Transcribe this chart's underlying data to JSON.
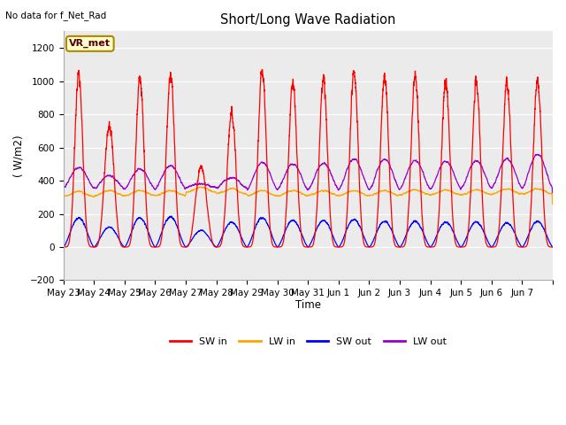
{
  "title": "Short/Long Wave Radiation",
  "subtitle": "No data for f_Net_Rad",
  "xlabel": "Time",
  "ylabel": "( W/m2)",
  "ylim": [
    -200,
    1300
  ],
  "yticks": [
    -200,
    0,
    200,
    400,
    600,
    800,
    1000,
    1200
  ],
  "station_label": "VR_met",
  "colors": {
    "SW_in": "#ff0000",
    "LW_in": "#ffa500",
    "SW_out": "#0000ff",
    "LW_out": "#9900cc"
  },
  "legend_labels": [
    "SW in",
    "LW in",
    "SW out",
    "LW out"
  ],
  "plot_bg_color": "#ebebeb",
  "n_days": 16,
  "x_tick_labels": [
    "May 23",
    "May 24",
    "May 25",
    "May 26",
    "May 27",
    "May 28",
    "May 29",
    "May 30",
    "May 31",
    "Jun 1",
    "Jun 2",
    "Jun 3",
    "Jun 4",
    "Jun 5",
    "Jun 6",
    "Jun 7"
  ],
  "SW_in_peaks": [
    1040,
    730,
    1020,
    1050,
    480,
    810,
    1070,
    990,
    1010,
    1060,
    1030,
    1020,
    1000,
    1000,
    1000,
    1020
  ],
  "SW_in_sharpness": [
    6,
    4,
    6,
    6,
    3,
    5,
    6,
    6,
    6,
    6,
    6,
    6,
    6,
    6,
    6,
    6
  ],
  "SW_out_peaks": [
    175,
    120,
    175,
    180,
    100,
    150,
    175,
    160,
    160,
    165,
    155,
    155,
    150,
    150,
    145,
    155
  ],
  "LW_in_base": [
    305,
    310,
    310,
    310,
    330,
    320,
    310,
    310,
    310,
    310,
    310,
    315,
    315,
    315,
    320,
    320
  ],
  "LW_out_peaks": [
    480,
    430,
    470,
    490,
    380,
    420,
    510,
    500,
    505,
    530,
    530,
    520,
    515,
    520,
    530,
    560
  ],
  "LW_out_base": [
    355,
    350,
    350,
    350,
    360,
    355,
    345,
    345,
    345,
    345,
    345,
    350,
    350,
    350,
    355,
    355
  ]
}
